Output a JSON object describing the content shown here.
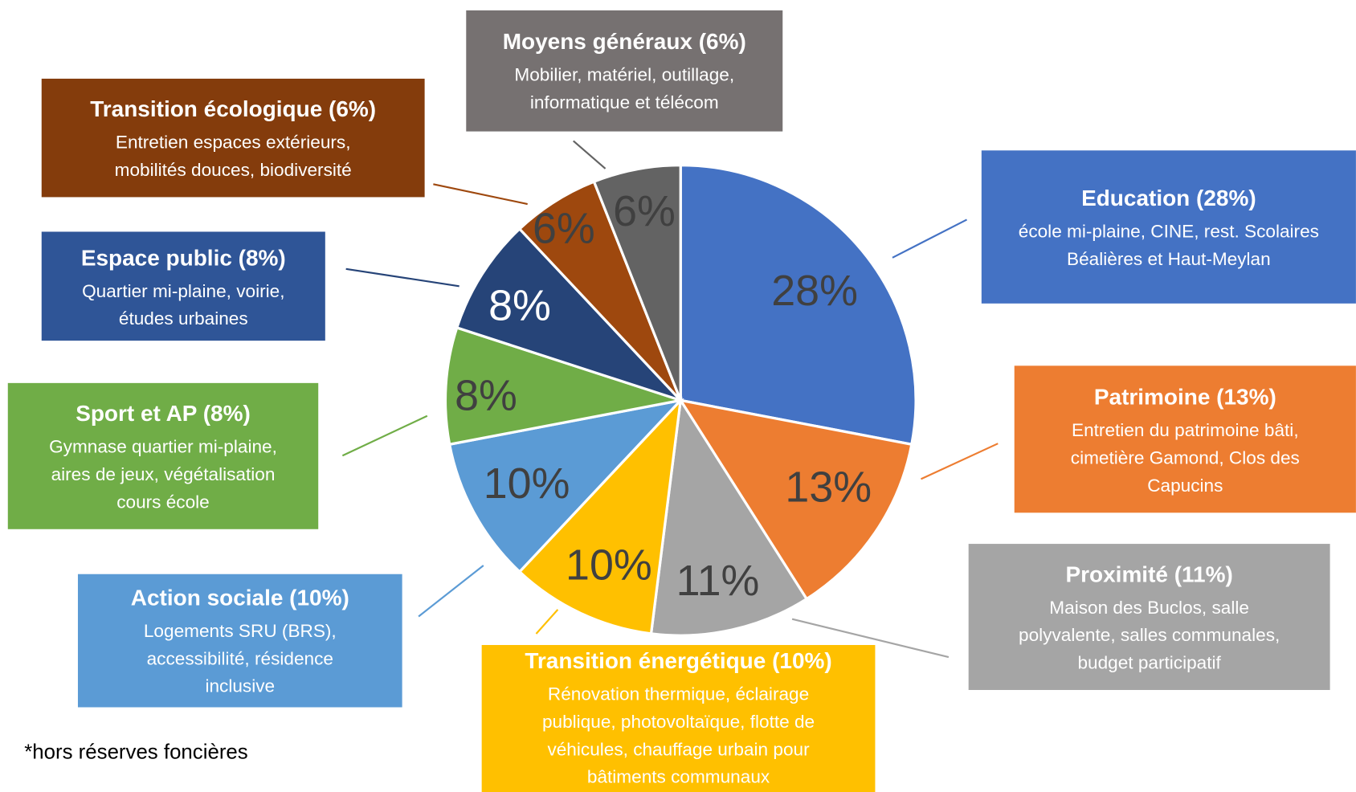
{
  "chart_data": {
    "type": "pie",
    "categories": [
      "Education (28%)",
      "Patrimoine (13%)",
      "Proximité (11%)",
      "Transition énergétique (10%)",
      "Action sociale (10%)",
      "Sport et AP (8%)",
      "Espace public (8%)",
      "Transition écologique (6%)",
      "Moyens généraux (6%)"
    ],
    "descriptions": [
      [
        "école mi-plaine, CINE, rest. Scolaires",
        "Béalières et Haut-Meylan"
      ],
      [
        "Entretien du patrimoine bâti,",
        "cimetière Gamond, Clos des",
        "Capucins"
      ],
      [
        "Maison des Buclos, salle",
        "polyvalente, salles communales,",
        "budget participatif"
      ],
      [
        "Rénovation thermique, éclairage",
        "publique, photovoltaïque, flotte de",
        "véhicules, chauffage urbain pour",
        "bâtiments communaux"
      ],
      [
        "Logements SRU (BRS),",
        "accessibilité, résidence",
        "inclusive"
      ],
      [
        "Gymnase quartier mi-plaine,",
        "aires de jeux, végétalisation",
        "cours école"
      ],
      [
        "Quartier mi-plaine, voirie,",
        "études urbaines"
      ],
      [
        "Entretien espaces extérieurs,",
        "mobilités douces, biodiversité"
      ],
      [
        "Mobilier, matériel, outillage,",
        "informatique et télécom"
      ]
    ],
    "values": [
      28,
      13,
      11,
      10,
      10,
      8,
      8,
      6,
      6
    ],
    "value_labels": [
      "28%",
      "13%",
      "11%",
      "10%",
      "10%",
      "8%",
      "8%",
      "6%",
      "6%"
    ],
    "colors": [
      "#4472c4",
      "#ed7d31",
      "#a5a5a5",
      "#ffc000",
      "#5b9bd5",
      "#70ad47",
      "#264478",
      "#9e480e",
      "#636363"
    ],
    "box_colors": [
      "#4472c4",
      "#ed7d31",
      "#a5a5a5",
      "#ffc000",
      "#5b9bd5",
      "#70ad47",
      "#2f5597",
      "#843c0c",
      "#767171"
    ],
    "value_label_colors": [
      "#404040",
      "#404040",
      "#404040",
      "#404040",
      "#404040",
      "#404040",
      "#ffffff",
      "#404040",
      "#404040"
    ],
    "footnote": "*hors réserves foncières"
  }
}
